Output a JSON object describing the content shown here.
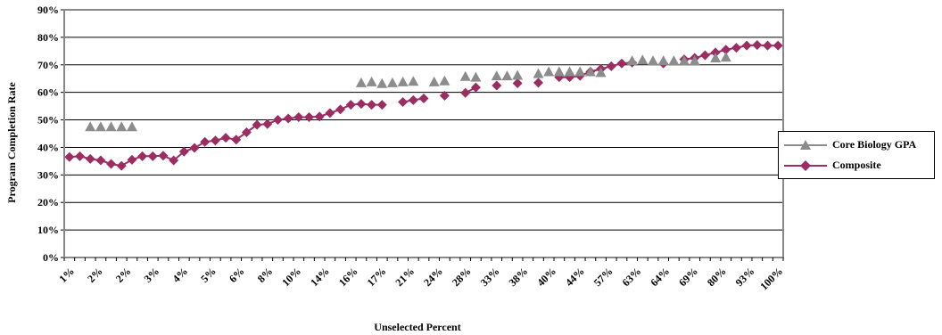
{
  "chart_data": {
    "type": "line",
    "title": "",
    "xlabel": "Unselected Percent",
    "ylabel": "Program Completion Rate",
    "ylim": [
      0,
      90
    ],
    "yticks": [
      "0%",
      "10%",
      "20%",
      "30%",
      "40%",
      "50%",
      "60%",
      "70%",
      "80%",
      "90%"
    ],
    "xtick_labels": [
      "1%",
      "2%",
      "2%",
      "3%",
      "4%",
      "5%",
      "6%",
      "8%",
      "10%",
      "14%",
      "16%",
      "17%",
      "21%",
      "24%",
      "28%",
      "33%",
      "38%",
      "40%",
      "44%",
      "57%",
      "63%",
      "64%",
      "69%",
      "80%",
      "93%",
      "100%"
    ],
    "grid": "horizontal",
    "legend_position": "right",
    "n_points": 52,
    "series": [
      {
        "name": "Core Biology GPA",
        "color": "#8c8c8c",
        "marker": "triangle",
        "line": false,
        "values": [
          null,
          null,
          47.5,
          47.5,
          47.5,
          47.5,
          47.5,
          null,
          null,
          null,
          null,
          null,
          null,
          null,
          null,
          null,
          null,
          null,
          null,
          null,
          null,
          null,
          null,
          null,
          63.5,
          63.5,
          63.5,
          63.5,
          63.5,
          63.5,
          64,
          64,
          64.5,
          64.5,
          null,
          65.5,
          65.5,
          null,
          66,
          66,
          66.5,
          66.5,
          66.5,
          null,
          67,
          67.5,
          67.5,
          67.5,
          67.5,
          67.5,
          67.5,
          67.5,
          null,
          null,
          null,
          null,
          null,
          71.5,
          71.5,
          71.5,
          71.5,
          71.5,
          71.5,
          71.5,
          null,
          72.5,
          72.5,
          null,
          null,
          null,
          null,
          null,
          null,
          null,
          null,
          null,
          null,
          null,
          null,
          null,
          null,
          null,
          null
        ]
      },
      {
        "name": "Composite",
        "color": "#9b2d62",
        "marker": "diamond",
        "line": true,
        "values": []
      }
    ]
  },
  "composite_points": [
    [
      0,
      36.5
    ],
    [
      1,
      36.8
    ],
    [
      2,
      35.8
    ],
    [
      3,
      35.3
    ],
    [
      4,
      34
    ],
    [
      5,
      33.3
    ],
    [
      6,
      35.5
    ],
    [
      7,
      36.8
    ],
    [
      8,
      36.8
    ],
    [
      9,
      37
    ],
    [
      10,
      35.3
    ],
    [
      11,
      38.5
    ],
    [
      12,
      39.8
    ],
    [
      13,
      42
    ],
    [
      14,
      42.5
    ],
    [
      15,
      43.5
    ],
    [
      16,
      42.8
    ],
    [
      17,
      45.5
    ],
    [
      18,
      48.2
    ],
    [
      19,
      48.5
    ],
    [
      20,
      50
    ],
    [
      21,
      50.5
    ],
    [
      22,
      51
    ],
    [
      23,
      51
    ],
    [
      24,
      51.2
    ],
    [
      25,
      52.5
    ],
    [
      26,
      53.8
    ],
    [
      27,
      55.5
    ],
    [
      28,
      55.8
    ],
    [
      29,
      55.5
    ],
    [
      30,
      55.5
    ],
    [
      32,
      56.5
    ],
    [
      33,
      57.2
    ],
    [
      34,
      57.8
    ],
    [
      36,
      58.8
    ],
    [
      38,
      59.8
    ],
    [
      39,
      61.8
    ],
    [
      41,
      62.5
    ],
    [
      43,
      63.3
    ],
    [
      45,
      63.5
    ],
    [
      47,
      65.5
    ],
    [
      48,
      65.5
    ],
    [
      49,
      66
    ],
    [
      50,
      67.5
    ],
    [
      51,
      68.5
    ],
    [
      52,
      69.5
    ],
    [
      53,
      70.5
    ],
    [
      54,
      70.8
    ],
    [
      57,
      70.5
    ],
    [
      59,
      72
    ],
    [
      60,
      72.5
    ],
    [
      61,
      73.5
    ],
    [
      62,
      74.5
    ],
    [
      63,
      75.5
    ],
    [
      64,
      76.2
    ],
    [
      65,
      77
    ],
    [
      66,
      77.2
    ],
    [
      67,
      77
    ],
    [
      68,
      77
    ]
  ],
  "triangle_points": [
    [
      2,
      47.5
    ],
    [
      3,
      47.5
    ],
    [
      4,
      47.5
    ],
    [
      5,
      47.5
    ],
    [
      6,
      47.5
    ],
    [
      28,
      63.5
    ],
    [
      29,
      63.8
    ],
    [
      30,
      63.2
    ],
    [
      31,
      63.5
    ],
    [
      32,
      63.8
    ],
    [
      33,
      64
    ],
    [
      35,
      63.8
    ],
    [
      36,
      64.2
    ],
    [
      38,
      65.8
    ],
    [
      39,
      65.5
    ],
    [
      41,
      66
    ],
    [
      42,
      66
    ],
    [
      43,
      66.2
    ],
    [
      45,
      66.8
    ],
    [
      46,
      67.5
    ],
    [
      47,
      67.5
    ],
    [
      48,
      67.5
    ],
    [
      49,
      67.5
    ],
    [
      50,
      67.5
    ],
    [
      51,
      67.2
    ],
    [
      54,
      71.5
    ],
    [
      55,
      71.8
    ],
    [
      56,
      71.5
    ],
    [
      57,
      71.5
    ],
    [
      58,
      71.5
    ],
    [
      59,
      71.5
    ],
    [
      60,
      71.5
    ],
    [
      62,
      72.5
    ],
    [
      63,
      72.8
    ]
  ],
  "legend": {
    "core_label": "Core Biology GPA",
    "composite_label": "Composite"
  },
  "colors": {
    "core": "#8c8c8c",
    "composite": "#9b2d62",
    "grid": "#000000",
    "frame": "#888888"
  }
}
